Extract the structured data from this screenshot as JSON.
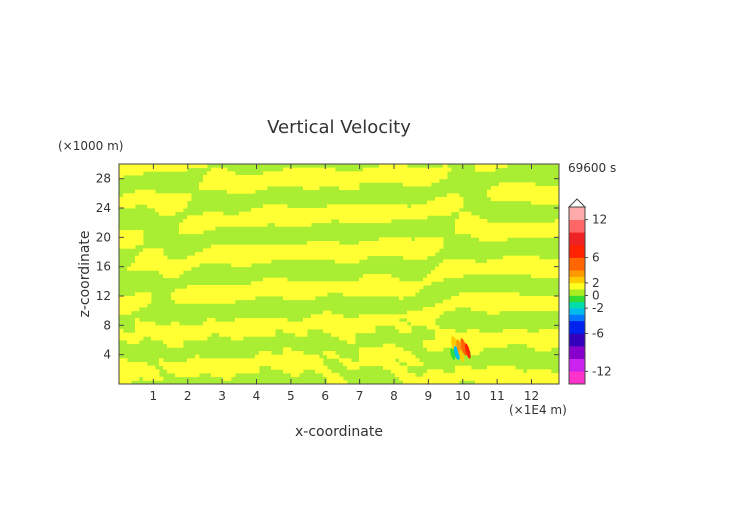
{
  "chart_data": {
    "type": "heatmap",
    "title": "Vertical Velocity",
    "xlabel": "x-coordinate",
    "ylabel": "z-coordinate",
    "x_unit": "(×1E4 m)",
    "y_unit": "(×1000 m)",
    "time_label": "69600 s",
    "xlim": [
      0,
      12.8
    ],
    "ylim": [
      0,
      30
    ],
    "x_ticks": [
      1,
      2,
      3,
      4,
      5,
      6,
      7,
      8,
      9,
      10,
      11,
      12
    ],
    "y_ticks": [
      4,
      8,
      12,
      16,
      20,
      24,
      28
    ],
    "colorbar": {
      "labels": [
        "12",
        "6",
        "2",
        "0",
        "-2",
        "-6",
        "-12"
      ],
      "label_values": [
        12,
        6,
        2,
        0,
        -2,
        -6,
        -12
      ],
      "range": [
        -14,
        14
      ],
      "levels": [
        {
          "min": -14,
          "max": -12,
          "color": "#ff33cc"
        },
        {
          "min": -12,
          "max": -10,
          "color": "#cc22ee"
        },
        {
          "min": -10,
          "max": -8,
          "color": "#8800cc"
        },
        {
          "min": -8,
          "max": -6,
          "color": "#3300bb"
        },
        {
          "min": -6,
          "max": -4,
          "color": "#0022ee"
        },
        {
          "min": -4,
          "max": -3,
          "color": "#0077ff"
        },
        {
          "min": -3,
          "max": -2,
          "color": "#00bbee"
        },
        {
          "min": -2,
          "max": -1,
          "color": "#00ddaa"
        },
        {
          "min": -1,
          "max": 0,
          "color": "#33dd33"
        },
        {
          "min": 0,
          "max": 1,
          "color": "#aaee22"
        },
        {
          "min": 1,
          "max": 2,
          "color": "#ffff22"
        },
        {
          "min": 2,
          "max": 3,
          "color": "#ffcc00"
        },
        {
          "min": 3,
          "max": 4,
          "color": "#ff9900"
        },
        {
          "min": 4,
          "max": 6,
          "color": "#ff6600"
        },
        {
          "min": 6,
          "max": 8,
          "color": "#ff2200"
        },
        {
          "min": 8,
          "max": 10,
          "color": "#ee2222"
        },
        {
          "min": 10,
          "max": 12,
          "color": "#ff6666"
        },
        {
          "min": 12,
          "max": 14,
          "color": "#ffaaaa"
        }
      ]
    },
    "dominant_field_colors": {
      "positive": "#ffff33",
      "negative": "#aaee33"
    },
    "extremes": {
      "max": 12,
      "min": -6,
      "location_x": 10,
      "location_z": 4.5
    }
  }
}
